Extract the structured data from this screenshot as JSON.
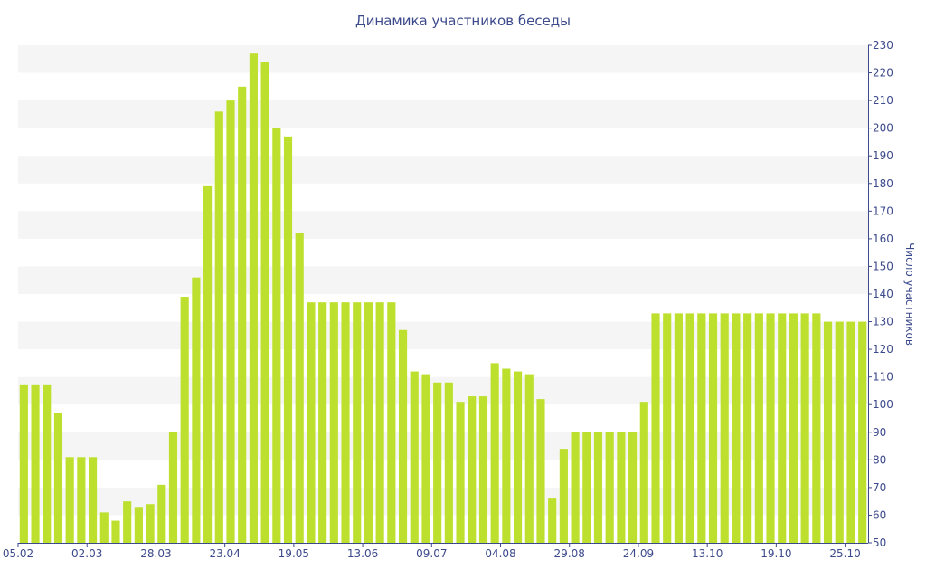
{
  "colors": {
    "bar": "#bde02f",
    "band": "#f5f5f5",
    "text": "#3c4a8c",
    "axis": "#3c4a8c"
  },
  "chart_data": {
    "type": "bar",
    "title": "Динамика участников беседы",
    "ylabel": "Число участников",
    "xlabel": "",
    "ylim": [
      50,
      230
    ],
    "yticks": [
      50,
      60,
      70,
      80,
      90,
      100,
      110,
      120,
      130,
      140,
      150,
      160,
      170,
      180,
      190,
      200,
      210,
      220,
      230
    ],
    "y_axis_position": "right",
    "grid": "alternating-bands",
    "legend": "none",
    "xtick_labels": [
      "05.02",
      "02.03",
      "28.03",
      "23.04",
      "19.05",
      "13.06",
      "09.07",
      "04.08",
      "29.08",
      "24.09",
      "13.10",
      "19.10",
      "25.10"
    ],
    "xtick_positions": [
      0,
      6,
      12,
      18,
      24,
      30,
      36,
      42,
      48,
      54,
      60,
      66,
      72
    ],
    "values": [
      107,
      107,
      107,
      97,
      81,
      81,
      81,
      61,
      58,
      65,
      63,
      64,
      71,
      90,
      139,
      146,
      179,
      206,
      210,
      215,
      227,
      224,
      200,
      197,
      162,
      137,
      137,
      137,
      137,
      137,
      137,
      137,
      137,
      127,
      112,
      111,
      108,
      108,
      101,
      103,
      103,
      115,
      113,
      112,
      111,
      102,
      66,
      84,
      90,
      90,
      90,
      90,
      90,
      90,
      101,
      133,
      133,
      133,
      133,
      133,
      133,
      133,
      133,
      133,
      133,
      133,
      133,
      133,
      133,
      133,
      130,
      130,
      130,
      130
    ]
  }
}
